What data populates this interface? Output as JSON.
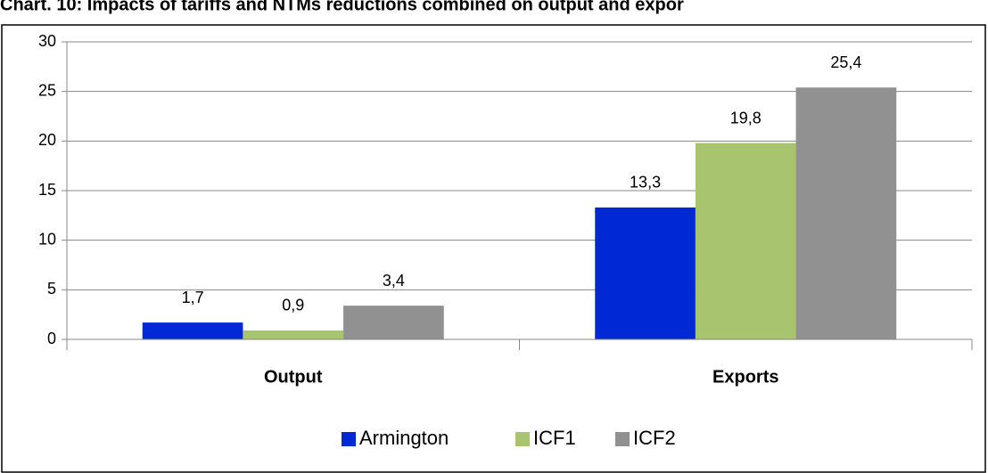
{
  "chart_data": {
    "type": "bar",
    "title": "Chart. 10: Impacts of tariffs and NTMs reductions combined on output and expor",
    "categories": [
      "Output",
      "Exports"
    ],
    "series": [
      {
        "name": "Armington",
        "color": "#0029d6",
        "values": [
          1.7,
          13.3
        ],
        "value_labels": [
          "1,7",
          "13,3"
        ]
      },
      {
        "name": "ICF1",
        "color": "#a8c46e",
        "values": [
          0.9,
          19.8
        ],
        "value_labels": [
          "0,9",
          "19,8"
        ]
      },
      {
        "name": "ICF2",
        "color": "#919191",
        "values": [
          3.4,
          25.4
        ],
        "value_labels": [
          "3,4",
          "25,4"
        ]
      }
    ],
    "ylim": [
      0,
      30
    ],
    "yticks": [
      0,
      5,
      10,
      15,
      20,
      25,
      30
    ],
    "grid": true,
    "legend": "bottom"
  }
}
